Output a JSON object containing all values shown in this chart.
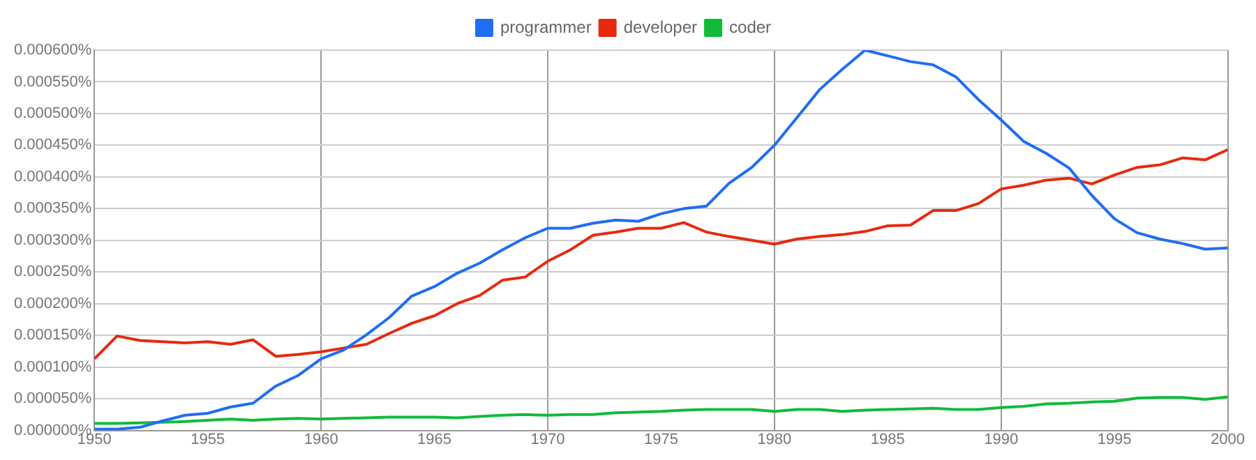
{
  "chart_data": {
    "type": "line",
    "x": [
      1950,
      1951,
      1952,
      1953,
      1954,
      1955,
      1956,
      1957,
      1958,
      1959,
      1960,
      1961,
      1962,
      1963,
      1964,
      1965,
      1966,
      1967,
      1968,
      1969,
      1970,
      1971,
      1972,
      1973,
      1974,
      1975,
      1976,
      1977,
      1978,
      1979,
      1980,
      1981,
      1982,
      1983,
      1984,
      1985,
      1986,
      1987,
      1988,
      1989,
      1990,
      1991,
      1992,
      1993,
      1994,
      1995,
      1996,
      1997,
      1998,
      1999,
      2000
    ],
    "series": [
      {
        "name": "programmer",
        "color": "#1f6ef2",
        "values": [
          2e-06,
          2e-06,
          5e-06,
          1.5e-05,
          2.4e-05,
          2.7e-05,
          3.7e-05,
          4.3e-05,
          7e-05,
          8.7e-05,
          0.000113,
          0.000127,
          0.000151,
          0.000178,
          0.000212,
          0.000227,
          0.000248,
          0.000264,
          0.000285,
          0.000304,
          0.000319,
          0.000319,
          0.000327,
          0.000332,
          0.00033,
          0.000342,
          0.00035,
          0.000354,
          0.00039,
          0.000415,
          0.00045,
          0.000494,
          0.000538,
          0.00057,
          0.0006,
          0.000591,
          0.000582,
          0.000577,
          0.000558,
          0.000522,
          0.00049,
          0.000456,
          0.000437,
          0.000414,
          0.000371,
          0.000334,
          0.000312,
          0.000302,
          0.000295,
          0.000286,
          0.000288
        ]
      },
      {
        "name": "developer",
        "color": "#e8290f",
        "values": [
          0.000113,
          0.000149,
          0.000142,
          0.00014,
          0.000138,
          0.00014,
          0.000136,
          0.000143,
          0.000117,
          0.00012,
          0.000124,
          0.00013,
          0.000136,
          0.000153,
          0.000169,
          0.000181,
          0.0002,
          0.000213,
          0.000237,
          0.000242,
          0.000267,
          0.000285,
          0.000308,
          0.000313,
          0.000319,
          0.000319,
          0.000328,
          0.000313,
          0.000306,
          0.0003,
          0.000294,
          0.000302,
          0.000306,
          0.000309,
          0.000314,
          0.000323,
          0.000324,
          0.000347,
          0.000347,
          0.000358,
          0.000381,
          0.000387,
          0.000395,
          0.000398,
          0.000389,
          0.000403,
          0.000415,
          0.000419,
          0.00043,
          0.000427,
          0.000443
        ]
      },
      {
        "name": "coder",
        "color": "#10bb3a",
        "values": [
          1.1e-05,
          1.1e-05,
          1.2e-05,
          1.3e-05,
          1.4e-05,
          1.6e-05,
          1.8e-05,
          1.6e-05,
          1.8e-05,
          1.9e-05,
          1.8e-05,
          1.9e-05,
          2e-05,
          2.1e-05,
          2.1e-05,
          2.1e-05,
          2e-05,
          2.2e-05,
          2.4e-05,
          2.5e-05,
          2.4e-05,
          2.5e-05,
          2.5e-05,
          2.8e-05,
          2.9e-05,
          3e-05,
          3.2e-05,
          3.3e-05,
          3.3e-05,
          3.3e-05,
          3e-05,
          3.3e-05,
          3.3e-05,
          3e-05,
          3.2e-05,
          3.3e-05,
          3.4e-05,
          3.5e-05,
          3.3e-05,
          3.3e-05,
          3.6e-05,
          3.8e-05,
          4.2e-05,
          4.3e-05,
          4.5e-05,
          4.6e-05,
          5.1e-05,
          5.2e-05,
          5.2e-05,
          4.9e-05,
          5.3e-05
        ]
      }
    ],
    "xlim": [
      1950,
      2000
    ],
    "xticks": [
      1950,
      1955,
      1960,
      1965,
      1970,
      1975,
      1980,
      1985,
      1990,
      1995,
      2000
    ],
    "ylim": [
      0,
      0.0006
    ],
    "yticks": [
      {
        "value": 0,
        "label": "0.000000%"
      },
      {
        "value": 5e-05,
        "label": "0.000050%"
      },
      {
        "value": 0.0001,
        "label": "0.000100%"
      },
      {
        "value": 0.00015,
        "label": "0.000150%"
      },
      {
        "value": 0.0002,
        "label": "0.000200%"
      },
      {
        "value": 0.00025,
        "label": "0.000250%"
      },
      {
        "value": 0.0003,
        "label": "0.000300%"
      },
      {
        "value": 0.00035,
        "label": "0.000350%"
      },
      {
        "value": 0.0004,
        "label": "0.000400%"
      },
      {
        "value": 0.00045,
        "label": "0.000450%"
      },
      {
        "value": 0.0005,
        "label": "0.000500%"
      },
      {
        "value": 0.00055,
        "label": "0.000550%"
      },
      {
        "value": 0.0006,
        "label": "0.000600%"
      }
    ],
    "grid": true,
    "legend": "top"
  }
}
